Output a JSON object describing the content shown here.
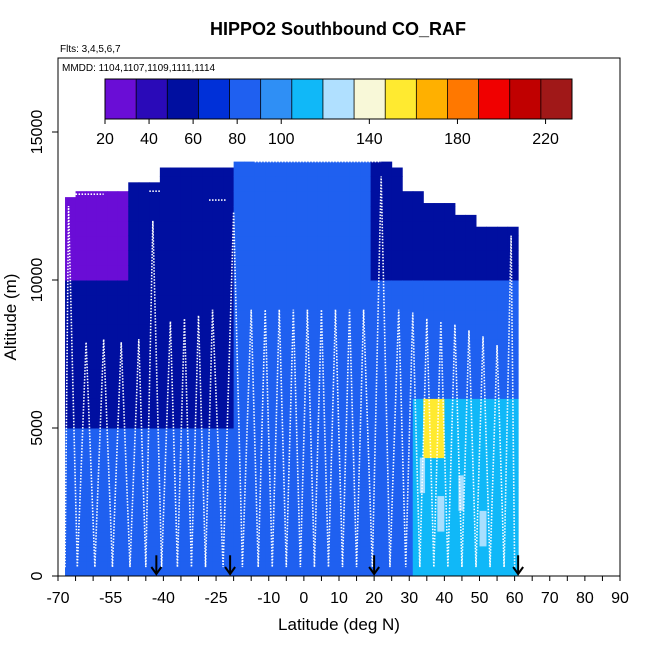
{
  "chart_data": {
    "type": "heatmap",
    "title": "HIPPO2 Southbound CO_RAF",
    "flights_note": "Flts: 3,4,5,6,7",
    "dates_note": "MMDD: 1104,1107,1109,1111,1114",
    "xlabel": "Latitude (deg N)",
    "ylabel": "Altitude (m)",
    "xlim": [
      -70,
      90
    ],
    "ylim": [
      0,
      17500
    ],
    "x_tick_labels": [
      "-70",
      "-55",
      "-40",
      "-25",
      "-10",
      "0",
      "10",
      "20",
      "30",
      "40",
      "50",
      "60",
      "70",
      "80",
      "90"
    ],
    "y_tick_labels": [
      "0",
      "5000",
      "10000",
      "15000"
    ],
    "colorbar": {
      "min": 20,
      "max": 232,
      "tick_labels": [
        "20",
        "40",
        "60",
        "80",
        "100",
        "140",
        "180",
        "220"
      ],
      "colors": [
        "#6a0dd6",
        "#2a0ab8",
        "#000fa0",
        "#0030d8",
        "#1f60f0",
        "#2f8ff5",
        "#10b8f8",
        "#b0e0ff",
        "#f8f8d8",
        "#ffea30",
        "#ffb000",
        "#ff7800",
        "#f00000",
        "#c00000",
        "#a01818"
      ]
    },
    "arrow_latitudes": [
      -42,
      -21,
      20,
      61
    ],
    "colors": {
      "purple": "#6a0dd6",
      "dark_blue": "#000fa0",
      "blue": "#1f60f0",
      "light_blue": "#10b8f8",
      "pale": "#cfe8ff",
      "yellow": "#ffea30",
      "red": "#f00000"
    }
  }
}
